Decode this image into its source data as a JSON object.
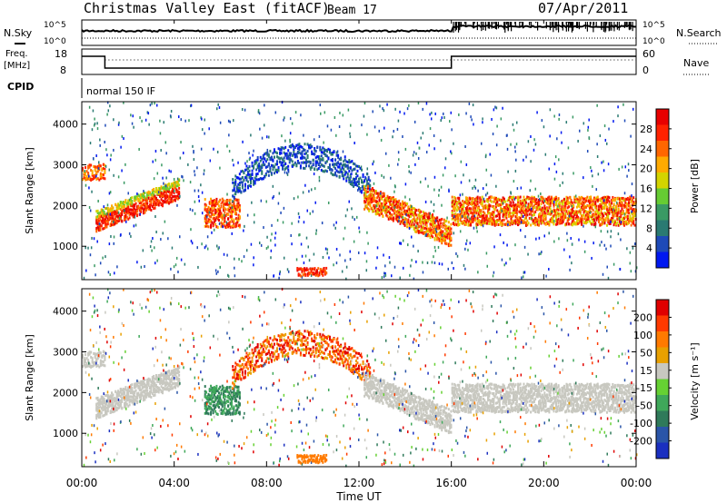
{
  "header": {
    "title": "Christmas Valley East (fitACF)",
    "beam": "Beam 17",
    "date": "07/Apr/2011"
  },
  "top_panels": {
    "nsky_label": "N.Sky",
    "nsearch_label": "N.Search",
    "nsky_ticks": [
      "10^5",
      "10^0"
    ],
    "nsearch_ticks": [
      "10^5",
      "10^0"
    ],
    "freq_label_1": "Freq.",
    "freq_label_2": "[MHz]",
    "freq_ticks": [
      "18",
      "8"
    ],
    "nave_label": "Nave",
    "nave_ticks": [
      "60",
      "0"
    ],
    "cpid_label": "CPID",
    "cpid_value": "normal 150 IF"
  },
  "colors": {
    "power": [
      "#0018f0",
      "#1e4ab8",
      "#2a7a72",
      "#3a9a64",
      "#66cc33",
      "#d4d400",
      "#ffaa00",
      "#ff6600",
      "#ff2200",
      "#e80000"
    ],
    "velocity": [
      "#1a2fc0",
      "#2a55a8",
      "#2f7a5a",
      "#3fa85a",
      "#66d133",
      "#c8c8c0",
      "#e8a000",
      "#ff7a00",
      "#ff3a00",
      "#e00000"
    ],
    "ground_scatter": "#c8c8c0"
  },
  "chart_data": [
    {
      "type": "heatmap",
      "name": "power",
      "ylabel": "Slant Range [km]",
      "xlabel": "Time UT",
      "x_ticks": [
        "00:00",
        "04:00",
        "08:00",
        "12:00",
        "16:00",
        "20:00",
        "00:00"
      ],
      "y_ticks": [
        "1000",
        "2000",
        "3000",
        "4000"
      ],
      "xlim_hours": [
        0,
        24
      ],
      "ylim_km": [
        180,
        4550
      ],
      "colorbar": {
        "label": "Power [dB]",
        "ticks": [
          "4",
          "8",
          "12",
          "16",
          "20",
          "24",
          "28"
        ],
        "range": [
          0,
          30
        ]
      }
    },
    {
      "type": "heatmap",
      "name": "velocity",
      "ylabel": "Slant Range [km]",
      "xlabel": "Time UT",
      "x_ticks": [
        "00:00",
        "04:00",
        "08:00",
        "12:00",
        "16:00",
        "20:00",
        "00:00"
      ],
      "y_ticks": [
        "1000",
        "2000",
        "3000",
        "4000"
      ],
      "xlim_hours": [
        0,
        24
      ],
      "ylim_km": [
        180,
        4550
      ],
      "colorbar": {
        "label": "Velocity [m s⁻¹]",
        "ticks": [
          "200",
          "100",
          "50",
          "15",
          "-15",
          "-50",
          "-100",
          "-200"
        ]
      }
    }
  ],
  "x_axis_label": "Time UT"
}
